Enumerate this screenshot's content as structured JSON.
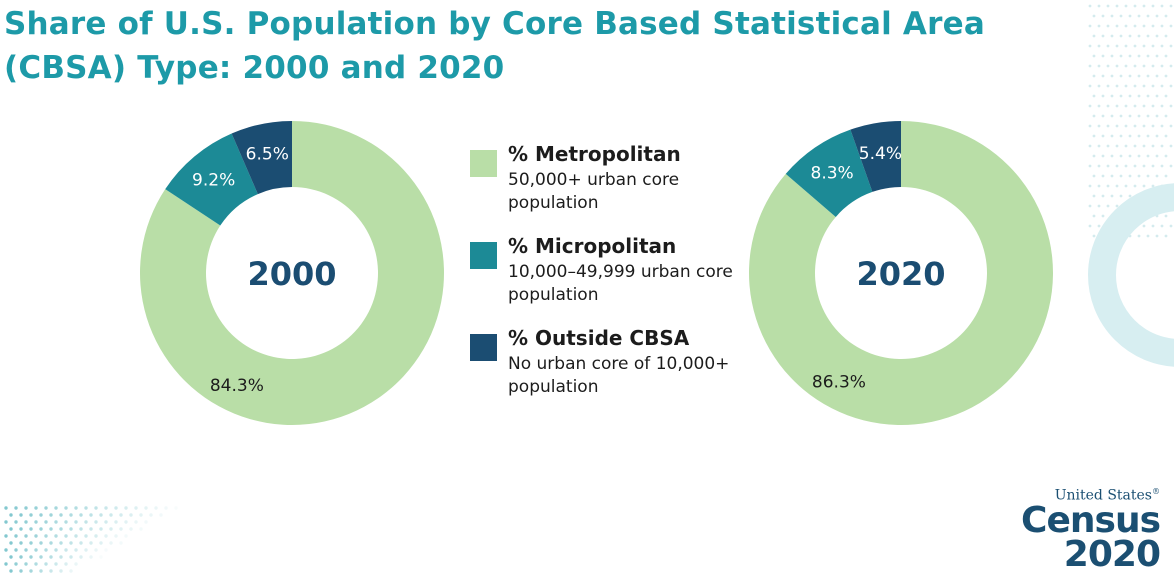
{
  "title": "Share of U.S. Population by Core Based Statistical Area (CBSA) Type: 2000 and 2020",
  "colors": {
    "title": "#1d9aa8",
    "metropolitan": "#b9dea7",
    "micropolitan": "#1c8a96",
    "outside": "#1b4d72",
    "center_label": "#1b4d72"
  },
  "legend": [
    {
      "name": "% Metropolitan",
      "desc": "50,000+ urban core population",
      "color_key": "metropolitan"
    },
    {
      "name": "% Micropolitan",
      "desc": "10,000–49,999 urban core population",
      "color_key": "micropolitan"
    },
    {
      "name": "% Outside CBSA",
      "desc": "No urban core of 10,000+ population",
      "color_key": "outside"
    }
  ],
  "chart_data": [
    {
      "type": "pie",
      "center_label": "2000",
      "categories": [
        "% Metropolitan",
        "% Micropolitan",
        "% Outside CBSA"
      ],
      "values": [
        84.3,
        9.2,
        6.5
      ],
      "labels": [
        "84.3%",
        "9.2%",
        "6.5%"
      ]
    },
    {
      "type": "pie",
      "center_label": "2020",
      "categories": [
        "% Metropolitan",
        "% Micropolitan",
        "% Outside CBSA"
      ],
      "values": [
        86.3,
        8.3,
        5.4
      ],
      "labels": [
        "86.3%",
        "8.3%",
        "5.4%"
      ]
    }
  ],
  "logo": {
    "line1": "United States",
    "line2": "Census",
    "line3": "2020",
    "registered": "®"
  }
}
